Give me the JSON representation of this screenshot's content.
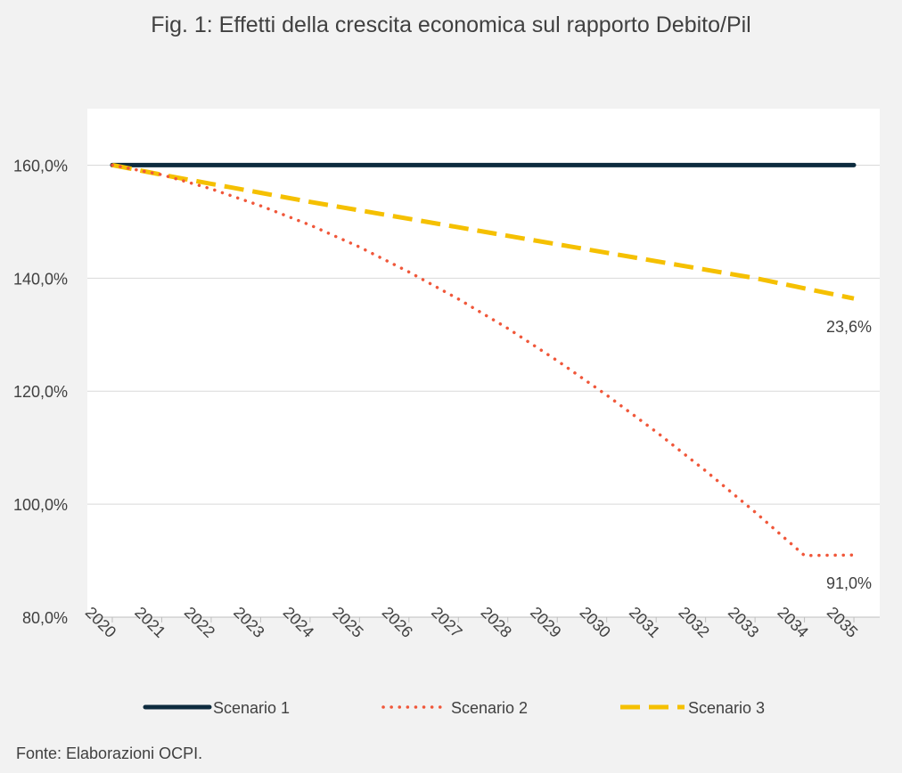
{
  "chart_data": {
    "type": "line",
    "title": "Fig. 1: Effetti della crescita economica sul rapporto Debito/Pil",
    "xlabel": "",
    "ylabel": "",
    "x": [
      "2020",
      "2021",
      "2022",
      "2023",
      "2024",
      "2025",
      "2026",
      "2027",
      "2028",
      "2029",
      "2030",
      "2031",
      "2032",
      "2033",
      "2034",
      "2035"
    ],
    "ylim": [
      80,
      170
    ],
    "yticks": [
      80,
      100,
      120,
      140,
      160
    ],
    "ytick_labels": [
      "80,0%",
      "100,0%",
      "120,0%",
      "140,0%",
      "160,0%"
    ],
    "grid": true,
    "legend_position": "bottom",
    "series": [
      {
        "name": "Scenario 1",
        "color": "#0d2b3e",
        "style": "solid",
        "values": [
          160,
          160,
          160,
          160,
          160,
          160,
          160,
          160,
          160,
          160,
          160,
          160,
          160,
          160,
          160,
          160
        ]
      },
      {
        "name": "Scenario 2",
        "color": "#f0573a",
        "style": "dotted",
        "values": [
          160,
          158.3,
          155.8,
          152.8,
          149.4,
          145.5,
          141.1,
          136.3,
          131.1,
          125.4,
          119.3,
          112.8,
          105.9,
          98.6,
          90.9,
          91.0
        ]
      },
      {
        "name": "Scenario 3",
        "color": "#f5c000",
        "style": "dashed",
        "values": [
          160,
          158.3,
          156.7,
          155.1,
          153.5,
          152.0,
          150.5,
          149.0,
          147.5,
          146.0,
          144.5,
          143.0,
          141.5,
          140.0,
          138.2,
          136.4
        ]
      }
    ],
    "annotations": [
      {
        "text": "23,6%",
        "series": "Scenario 3",
        "x": "2035",
        "y": 136.4
      },
      {
        "text": "91,0%",
        "series": "Scenario 2",
        "x": "2035",
        "y": 91.0
      }
    ],
    "source": "Fonte: Elaborazioni OCPI."
  }
}
